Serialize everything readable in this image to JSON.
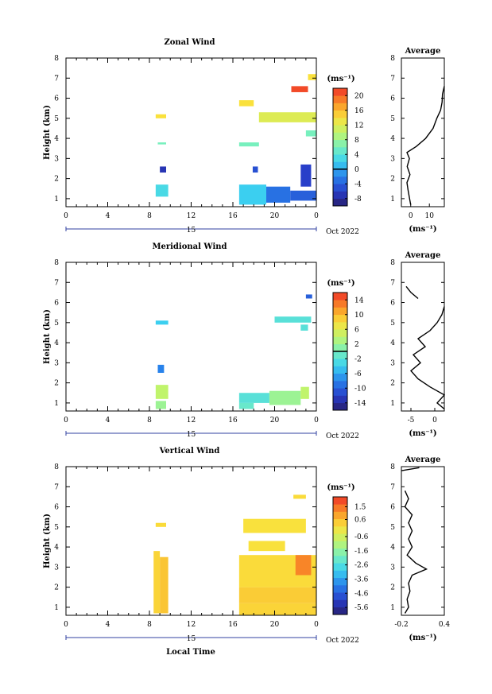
{
  "figure": {
    "x_axis_label": "Local Time",
    "date_label": "Oct 2022",
    "day_label": "15",
    "unit_label": "(ms⁻¹)",
    "average_title": "Average",
    "y_axis_label": "Height (km)"
  },
  "chart_data": [
    {
      "type": "heatmap",
      "title": "Zonal Wind",
      "xlabel": "",
      "ylabel": "Height (km)",
      "x_ticks": [
        "0",
        "4",
        "8",
        "12",
        "16",
        "20",
        "0"
      ],
      "xlim_hours": [
        0,
        24
      ],
      "y_ticks": [
        "1",
        "2",
        "3",
        "4",
        "5",
        "6",
        "7",
        "8"
      ],
      "ylim_km": [
        0.6,
        8
      ],
      "colorbar": {
        "unit": "(ms⁻¹)",
        "ticks": [
          "20",
          "16",
          "12",
          "8",
          "4",
          "0",
          "-4",
          "-8"
        ],
        "range": [
          -10,
          22
        ],
        "zero_line": 0
      },
      "patches": [
        {
          "x": [
            8.6,
            9.6
          ],
          "y": [
            5.0,
            5.2
          ],
          "value": 14
        },
        {
          "x": [
            8.8,
            9.6
          ],
          "y": [
            3.7,
            3.8
          ],
          "value": 6
        },
        {
          "x": [
            9.0,
            9.6
          ],
          "y": [
            2.3,
            2.6
          ],
          "value": -7
        },
        {
          "x": [
            8.6,
            9.8
          ],
          "y": [
            1.1,
            1.7
          ],
          "value": 3
        },
        {
          "x": [
            16.6,
            18.0
          ],
          "y": [
            5.6,
            5.9
          ],
          "value": 14
        },
        {
          "x": [
            18.5,
            24.0
          ],
          "y": [
            4.8,
            5.3
          ],
          "value": 12
        },
        {
          "x": [
            16.6,
            18.5
          ],
          "y": [
            3.6,
            3.8
          ],
          "value": 6
        },
        {
          "x": [
            23.0,
            24.0
          ],
          "y": [
            4.1,
            4.4
          ],
          "value": 6
        },
        {
          "x": [
            17.9,
            18.4
          ],
          "y": [
            2.3,
            2.6
          ],
          "value": -5
        },
        {
          "x": [
            16.6,
            19.2
          ],
          "y": [
            0.7,
            1.7
          ],
          "value": 2
        },
        {
          "x": [
            19.2,
            21.5
          ],
          "y": [
            0.8,
            1.6
          ],
          "value": -3
        },
        {
          "x": [
            21.5,
            24.0
          ],
          "y": [
            0.9,
            1.4
          ],
          "value": -4
        },
        {
          "x": [
            22.5,
            23.5
          ],
          "y": [
            1.6,
            2.7
          ],
          "value": -6
        },
        {
          "x": [
            21.6,
            23.2
          ],
          "y": [
            6.3,
            6.6
          ],
          "value": 21
        },
        {
          "x": [
            23.2,
            24.0
          ],
          "y": [
            6.9,
            7.2
          ],
          "value": 14
        }
      ],
      "average": {
        "title": "Average",
        "xlabel": "(ms⁻¹)",
        "x_ticks": [
          "0",
          "10"
        ],
        "xlim": [
          -5,
          18
        ],
        "height_km": [
          0.7,
          1.0,
          1.4,
          1.8,
          2.2,
          2.6,
          3.0,
          3.3,
          3.6,
          4.0,
          4.5,
          5.0,
          5.4,
          5.8,
          6.2,
          6.6
        ],
        "wind": [
          0.0,
          -0.6,
          -1.4,
          -2.0,
          -0.4,
          -1.9,
          -0.7,
          -2.0,
          3.0,
          8.0,
          12.0,
          14.0,
          16.0,
          16.8,
          17.0,
          18.0
        ]
      }
    },
    {
      "type": "heatmap",
      "title": "Meridional Wind",
      "xlabel": "",
      "ylabel": "Height (km)",
      "x_ticks": [
        "0",
        "4",
        "8",
        "12",
        "16",
        "20",
        "0"
      ],
      "xlim_hours": [
        0,
        24
      ],
      "y_ticks": [
        "1",
        "2",
        "3",
        "4",
        "5",
        "6",
        "7",
        "8"
      ],
      "ylim_km": [
        0.6,
        8
      ],
      "colorbar": {
        "unit": "(ms⁻¹)",
        "ticks": [
          "14",
          "10",
          "6",
          "2",
          "-2",
          "-6",
          "-10",
          "-14"
        ],
        "range": [
          -16,
          16
        ],
        "zero_line": 0
      },
      "patches": [
        {
          "x": [
            8.6,
            9.8
          ],
          "y": [
            4.9,
            5.1
          ],
          "value": -4
        },
        {
          "x": [
            8.8,
            9.4
          ],
          "y": [
            2.5,
            2.9
          ],
          "value": -8
        },
        {
          "x": [
            8.6,
            9.8
          ],
          "y": [
            1.2,
            1.9
          ],
          "value": 4
        },
        {
          "x": [
            8.6,
            9.6
          ],
          "y": [
            0.7,
            1.1
          ],
          "value": 2
        },
        {
          "x": [
            16.6,
            19.5
          ],
          "y": [
            1.0,
            1.5
          ],
          "value": -2
        },
        {
          "x": [
            19.5,
            22.5
          ],
          "y": [
            0.9,
            1.6
          ],
          "value": 2
        },
        {
          "x": [
            22.5,
            23.3
          ],
          "y": [
            1.2,
            1.8
          ],
          "value": 4
        },
        {
          "x": [
            20.0,
            23.5
          ],
          "y": [
            5.0,
            5.3
          ],
          "value": -2
        },
        {
          "x": [
            22.5,
            23.2
          ],
          "y": [
            4.6,
            4.9
          ],
          "value": -2
        },
        {
          "x": [
            23.0,
            23.6
          ],
          "y": [
            6.2,
            6.4
          ],
          "value": -10
        },
        {
          "x": [
            16.6,
            18.0
          ],
          "y": [
            0.7,
            1.0
          ],
          "value": -1
        }
      ],
      "average": {
        "title": "Average",
        "xlabel": "(ms⁻¹)",
        "x_ticks": [
          "-5",
          "0"
        ],
        "xlim": [
          -7,
          2
        ],
        "height_km": [
          0.7,
          1.0,
          1.4,
          1.8,
          2.2,
          2.6,
          3.0,
          3.4,
          3.8,
          4.2,
          4.6,
          5.0,
          5.4,
          5.8
        ],
        "wind": [
          2.0,
          0.5,
          2.0,
          -1.0,
          -3.5,
          -5.0,
          -3.0,
          -4.5,
          -2.0,
          -3.5,
          -1.0,
          0.5,
          1.5,
          2.0
        ],
        "segment2": {
          "height_km": [
            6.2,
            6.5,
            6.8
          ],
          "wind": [
            -3.5,
            -5.0,
            -6.0
          ]
        }
      }
    },
    {
      "type": "heatmap",
      "title": "Vertical Wind",
      "xlabel": "Local Time",
      "ylabel": "Height (km)",
      "x_ticks": [
        "0",
        "4",
        "8",
        "12",
        "16",
        "20",
        "0"
      ],
      "xlim_hours": [
        0,
        24
      ],
      "y_ticks": [
        "1",
        "2",
        "3",
        "4",
        "5",
        "6",
        "7",
        "8"
      ],
      "ylim_km": [
        0.6,
        8
      ],
      "colorbar": {
        "unit": "(ms⁻¹)",
        "ticks": [
          "1.5",
          "0.6",
          "-0.6",
          "-1.6",
          "-2.6",
          "-3.6",
          "-4.6",
          "-5.6"
        ],
        "range": [
          -6.1,
          2.2
        ],
        "zero_line": null
      },
      "patches": [
        {
          "x": [
            8.4,
            9.0
          ],
          "y": [
            0.7,
            3.8
          ],
          "value": 0.3
        },
        {
          "x": [
            9.0,
            9.8
          ],
          "y": [
            0.7,
            3.5
          ],
          "value": 0.5
        },
        {
          "x": [
            8.6,
            9.6
          ],
          "y": [
            5.0,
            5.2
          ],
          "value": 0.2
        },
        {
          "x": [
            16.6,
            24.0
          ],
          "y": [
            0.6,
            1.2
          ],
          "value": 0.3
        },
        {
          "x": [
            16.6,
            24.0
          ],
          "y": [
            1.2,
            2.0
          ],
          "value": 0.4
        },
        {
          "x": [
            16.6,
            24.0
          ],
          "y": [
            2.0,
            3.6
          ],
          "value": 0.2
        },
        {
          "x": [
            22.0,
            23.5
          ],
          "y": [
            2.6,
            3.6
          ],
          "value": 1.3
        },
        {
          "x": [
            17.0,
            23.0
          ],
          "y": [
            4.7,
            5.4
          ],
          "value": 0.1
        },
        {
          "x": [
            21.8,
            23.0
          ],
          "y": [
            6.4,
            6.6
          ],
          "value": 0.2
        },
        {
          "x": [
            17.5,
            21.0
          ],
          "y": [
            3.8,
            4.3
          ],
          "value": 0.1
        }
      ],
      "average": {
        "title": "Average",
        "xlabel": "(ms⁻¹)",
        "x_ticks": [
          "-0.2",
          "0.4"
        ],
        "xlim": [
          -0.2,
          0.4
        ],
        "height_km": [
          0.7,
          1.0,
          1.4,
          1.8,
          2.2,
          2.6,
          2.9,
          3.2,
          3.6,
          4.0,
          4.4,
          4.8,
          5.2,
          5.6,
          6.0,
          6.4,
          6.8
        ],
        "wind": [
          -0.15,
          -0.1,
          -0.12,
          -0.08,
          -0.1,
          -0.05,
          0.15,
          0.0,
          -0.12,
          -0.05,
          -0.1,
          -0.05,
          -0.1,
          -0.05,
          -0.15,
          -0.1,
          -0.15
        ],
        "segment2": {
          "height_km": [
            7.8,
            7.95
          ],
          "wind": [
            -0.2,
            0.05
          ]
        }
      }
    }
  ]
}
